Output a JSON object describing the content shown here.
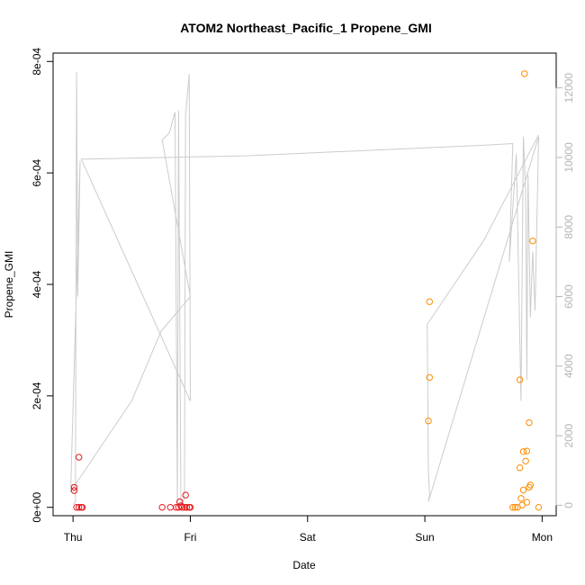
{
  "chart_data": {
    "type": "scatter",
    "title": "ATOM2 Northeast_Pacific_1 Propene_GMI",
    "xlabel": "Date",
    "ylabel": "Propene_GMI",
    "x_ticks": [
      "Thu",
      "Fri",
      "Sat",
      "Sun",
      "Mon"
    ],
    "xlim_days": [
      -0.17,
      4.12
    ],
    "ylim": [
      -1.5e-05,
      0.000815
    ],
    "y_ticks": [
      {
        "value": 0,
        "label": "0e+00"
      },
      {
        "value": 0.0002,
        "label": "2e-04"
      },
      {
        "value": 0.0004,
        "label": "4e-04"
      },
      {
        "value": 0.0006,
        "label": "6e-04"
      },
      {
        "value": 0.0008,
        "label": "8e-04"
      }
    ],
    "y2lim": [
      -300,
      13000
    ],
    "y2_ticks": [
      {
        "value": 0,
        "label": "0"
      },
      {
        "value": 2000,
        "label": "2000"
      },
      {
        "value": 4000,
        "label": "4000"
      },
      {
        "value": 6000,
        "label": "6000"
      },
      {
        "value": 8000,
        "label": "8000"
      },
      {
        "value": 10000,
        "label": "10000"
      },
      {
        "value": 12000,
        "label": "12000"
      }
    ],
    "grid": false,
    "series": [
      {
        "color": "#e41a1c",
        "marker": "open-circle",
        "axis": "left",
        "points": [
          [
            0.01,
            3.6e-05
          ],
          [
            0.01,
            3e-05
          ],
          [
            0.03,
            0.0
          ],
          [
            0.05,
            9e-05
          ],
          [
            0.05,
            0.0
          ],
          [
            0.07,
            0.0
          ],
          [
            0.08,
            0.0
          ],
          [
            0.76,
            0.0
          ],
          [
            0.83,
            0.0
          ],
          [
            0.88,
            0.0
          ],
          [
            0.9,
            0.0
          ],
          [
            0.91,
            1e-05
          ],
          [
            0.92,
            3e-06
          ],
          [
            0.93,
            0.0
          ],
          [
            0.95,
            0.0
          ],
          [
            0.96,
            2.2e-05
          ],
          [
            0.97,
            0.0
          ],
          [
            0.99,
            0.0
          ],
          [
            1.0,
            0.0
          ]
        ]
      },
      {
        "color": "#ff8c00",
        "marker": "open-circle",
        "axis": "left",
        "points": [
          [
            3.03,
            0.000155
          ],
          [
            3.04,
            0.000233
          ],
          [
            3.04,
            0.000369
          ],
          [
            3.75,
            0.0
          ],
          [
            3.77,
            0.0
          ],
          [
            3.79,
            0.0
          ],
          [
            3.81,
            7.1e-05
          ],
          [
            3.81,
            0.000229
          ],
          [
            3.82,
            1.6e-05
          ],
          [
            3.83,
            4e-06
          ],
          [
            3.84,
            3.1e-05
          ],
          [
            3.84,
            0.0001
          ],
          [
            3.85,
            0.000778
          ],
          [
            3.86,
            8.3e-05
          ],
          [
            3.87,
            0.000101
          ],
          [
            3.87,
            9e-06
          ],
          [
            3.89,
            3.6e-05
          ],
          [
            3.9,
            4e-05
          ],
          [
            3.89,
            0.000152
          ],
          [
            3.92,
            0.000478
          ],
          [
            3.97,
            0.0
          ]
        ]
      },
      {
        "color": "#cccccc",
        "marker": "line",
        "axis": "right",
        "points": [
          [
            0.0,
            20
          ],
          [
            0.02,
            100
          ],
          [
            0.03,
            12450
          ],
          [
            0.04,
            6000
          ],
          [
            0.06,
            9900
          ],
          [
            -0.02,
            400
          ],
          [
            0.0,
            500
          ],
          [
            0.5,
            3000
          ],
          [
            0.75,
            5000
          ],
          [
            1.0,
            6000
          ],
          [
            0.76,
            10500
          ],
          [
            0.82,
            10700
          ],
          [
            0.87,
            11300
          ],
          [
            0.89,
            0
          ],
          [
            0.9,
            11350
          ],
          [
            0.92,
            0
          ],
          [
            0.95,
            200
          ],
          [
            0.96,
            11200
          ],
          [
            0.99,
            12400
          ],
          [
            1.0,
            3000
          ],
          [
            0.07,
            9950
          ],
          [
            1.5,
            10050
          ],
          [
            2.5,
            10200
          ],
          [
            3.5,
            10350
          ],
          [
            3.75,
            10400
          ],
          [
            3.72,
            7000
          ],
          [
            3.78,
            10100
          ],
          [
            3.82,
            3000
          ],
          [
            3.84,
            10600
          ],
          [
            3.86,
            9000
          ],
          [
            3.87,
            3600
          ],
          [
            3.88,
            9500
          ],
          [
            3.9,
            5400
          ],
          [
            3.92,
            7300
          ],
          [
            3.94,
            5600
          ],
          [
            3.97,
            10600
          ],
          [
            3.03,
            100
          ],
          [
            3.04,
            300
          ],
          [
            3.03,
            1000
          ],
          [
            3.02,
            5200
          ],
          [
            3.5,
            7600
          ],
          [
            3.97,
            10650
          ]
        ]
      }
    ]
  }
}
